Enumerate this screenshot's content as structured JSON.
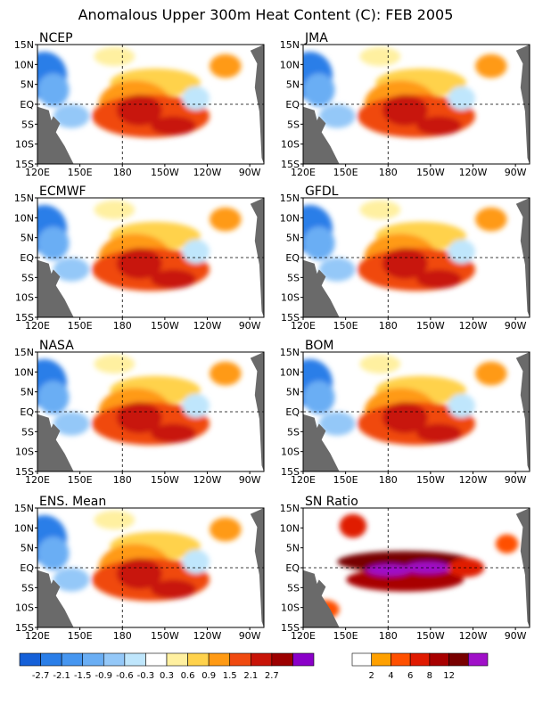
{
  "figure": {
    "title": "Anomalous Upper 300m Heat Content (C): FEB 2005"
  },
  "chart_data": [
    {
      "type": "heatmap",
      "title": "NCEP",
      "xlim": [
        "120E",
        "80W"
      ],
      "ylim": [
        "15S",
        "15N"
      ]
    },
    {
      "type": "heatmap",
      "title": "JMA",
      "xlim": [
        "120E",
        "80W"
      ],
      "ylim": [
        "15S",
        "15N"
      ]
    },
    {
      "type": "heatmap",
      "title": "ECMWF",
      "xlim": [
        "120E",
        "80W"
      ],
      "ylim": [
        "15S",
        "15N"
      ]
    },
    {
      "type": "heatmap",
      "title": "GFDL",
      "xlim": [
        "120E",
        "80W"
      ],
      "ylim": [
        "15S",
        "15N"
      ]
    },
    {
      "type": "heatmap",
      "title": "NASA",
      "xlim": [
        "120E",
        "80W"
      ],
      "ylim": [
        "15S",
        "15N"
      ]
    },
    {
      "type": "heatmap",
      "title": "BOM",
      "xlim": [
        "120E",
        "80W"
      ],
      "ylim": [
        "15S",
        "15N"
      ]
    },
    {
      "type": "heatmap",
      "title": "ENS. Mean",
      "xlim": [
        "120E",
        "80W"
      ],
      "ylim": [
        "15S",
        "15N"
      ]
    },
    {
      "type": "heatmap",
      "title": "SN Ratio",
      "xlim": [
        "120E",
        "80W"
      ],
      "ylim": [
        "15S",
        "15N"
      ]
    }
  ],
  "axes": {
    "x_ticks": [
      "120E",
      "150E",
      "180",
      "150W",
      "120W",
      "90W"
    ],
    "y_ticks": [
      "15N",
      "10N",
      "5N",
      "EQ",
      "5S",
      "10S",
      "15S"
    ]
  },
  "colorbars": {
    "anomaly": {
      "labels": [
        "-2.7",
        "-2.1",
        "-1.5",
        "-0.9",
        "-0.6",
        "-0.3",
        "0.3",
        "0.6",
        "0.9",
        "1.5",
        "2.1",
        "2.7"
      ],
      "colors": [
        "#1560d8",
        "#2a7ee8",
        "#4696f0",
        "#6aaef4",
        "#94c8f8",
        "#bfe6fc",
        "#ffffff",
        "#fff0a0",
        "#ffd24c",
        "#ff9a14",
        "#f04a10",
        "#c81408",
        "#9c0000",
        "#8a00c8"
      ]
    },
    "sn_ratio": {
      "labels": [
        "2",
        "4",
        "6",
        "8",
        "12"
      ],
      "colors": [
        "#ffffff",
        "#ffa000",
        "#ff5000",
        "#e01a00",
        "#a80000",
        "#780000",
        "#a010c8"
      ]
    }
  },
  "colors": {
    "land": "#6a6a6a",
    "frame": "#000000"
  }
}
